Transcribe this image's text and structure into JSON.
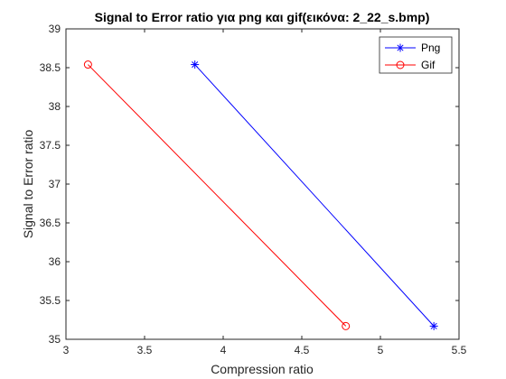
{
  "chart_data": {
    "type": "line",
    "title": "Signal to Error ratio για png και gif(εικόνα: 2_22_s.bmp)",
    "xlabel": "Compression ratio",
    "ylabel": "Signal to Error ratio",
    "xlim": [
      3,
      5.5
    ],
    "ylim": [
      35,
      39
    ],
    "xticks": [
      "3",
      "3.5",
      "4",
      "4.5",
      "5",
      "5.5"
    ],
    "yticks": [
      "35",
      "35.5",
      "36",
      "36.5",
      "37",
      "37.5",
      "38",
      "38.5",
      "39"
    ],
    "grid": false,
    "legend_position": "top-right",
    "series": [
      {
        "name": "Png",
        "color": "#0000ff",
        "marker": "asterisk",
        "x": [
          3.82,
          5.34
        ],
        "y": [
          38.54,
          35.17
        ]
      },
      {
        "name": "Gif",
        "color": "#ff0000",
        "marker": "circle",
        "x": [
          3.14,
          4.78
        ],
        "y": [
          38.54,
          35.17
        ]
      }
    ]
  }
}
